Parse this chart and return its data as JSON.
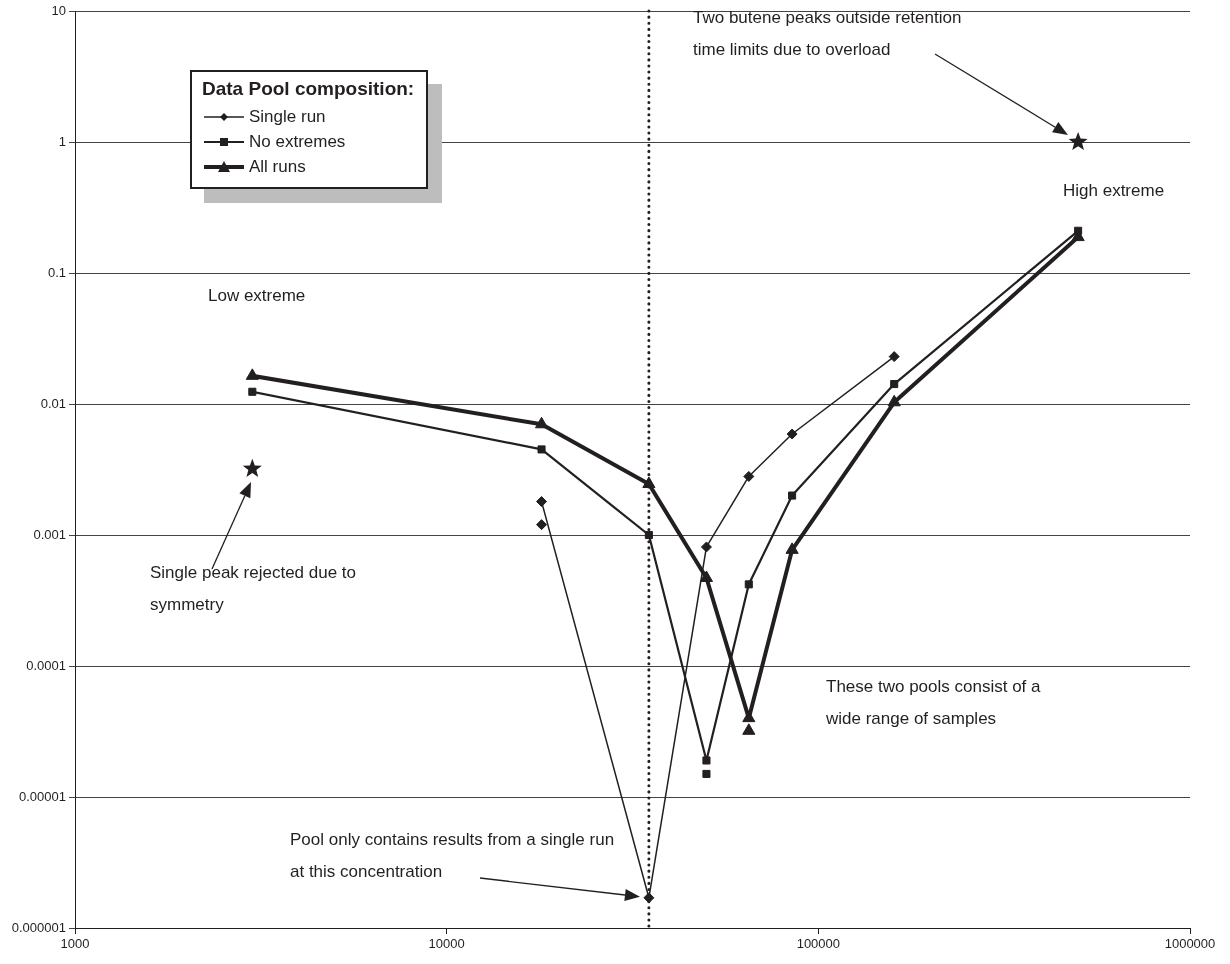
{
  "chart_data": {
    "type": "line",
    "log": "xy",
    "xlim": [
      1000,
      1000000
    ],
    "xticks": [
      1000,
      10000,
      100000,
      1000000
    ],
    "ylim": [
      1e-06,
      10
    ],
    "yticks": [
      {
        "value": 1e-06,
        "label": "0.000001"
      },
      {
        "value": 1e-05,
        "label": "0.00001"
      },
      0.0001,
      0.001,
      0.01,
      0.1,
      1,
      10
    ],
    "grid": "y",
    "legend": "top left",
    "legend_title": "Data Pool composition:",
    "series": [
      {
        "name": "Single run",
        "color": "#231f20",
        "marker": "diamond",
        "x": [
          18000,
          35000,
          50000,
          65000,
          85000,
          160000
        ],
        "values": [
          0.0018,
          1.7e-06,
          0.00081,
          0.0028,
          0.0059,
          0.023
        ]
      },
      {
        "name": "No extremes",
        "color": "#231f20",
        "marker": "square",
        "x": [
          3000,
          18000,
          35000,
          50000,
          65000,
          85000,
          160000,
          500000
        ],
        "values": [
          0.0124,
          0.0045,
          0.001,
          1.9e-05,
          0.00042,
          0.002,
          0.0142,
          0.21
        ]
      },
      {
        "name": "All runs",
        "color": "#231f20",
        "marker": "triangle",
        "x": [
          3000,
          18000,
          35000,
          50000,
          65000,
          85000,
          160000,
          500000
        ],
        "values": [
          0.0164,
          0.007,
          0.00245,
          0.00047,
          4e-05,
          0.00077,
          0.0103,
          0.188
        ]
      },
      {
        "type": "scatter",
        "color": "#231f20",
        "marker": "diamond",
        "x": [
          18000
        ],
        "values": [
          0.0012
        ]
      },
      {
        "type": "scatter",
        "color": "#231f20",
        "marker": "square",
        "x": [
          50000
        ],
        "values": [
          1.5e-05
        ]
      },
      {
        "type": "scatter",
        "color": "#231f20",
        "marker": "triangle",
        "x": [
          65000
        ],
        "values": [
          3.2e-05
        ]
      },
      {
        "type": "scatter",
        "color": "#231f20",
        "marker": "star",
        "x": [
          3000,
          500000
        ],
        "values": [
          0.0032,
          1
        ]
      }
    ],
    "ref_lines": [
      {
        "axis": "x",
        "value": 35000,
        "color": "#231f20",
        "line_style": "dotted"
      }
    ],
    "annotations": [
      "Two butene peaks outside retention time limits due to overload",
      "High extreme",
      "Low extreme",
      "Single peak rejected due to symmetry",
      "These two pools consist of a wide range of samples",
      {
        "text": "Pool only contains results from a single run at this concentration",
        "x": 35000,
        "y": 1.7e-06
      }
    ]
  }
}
